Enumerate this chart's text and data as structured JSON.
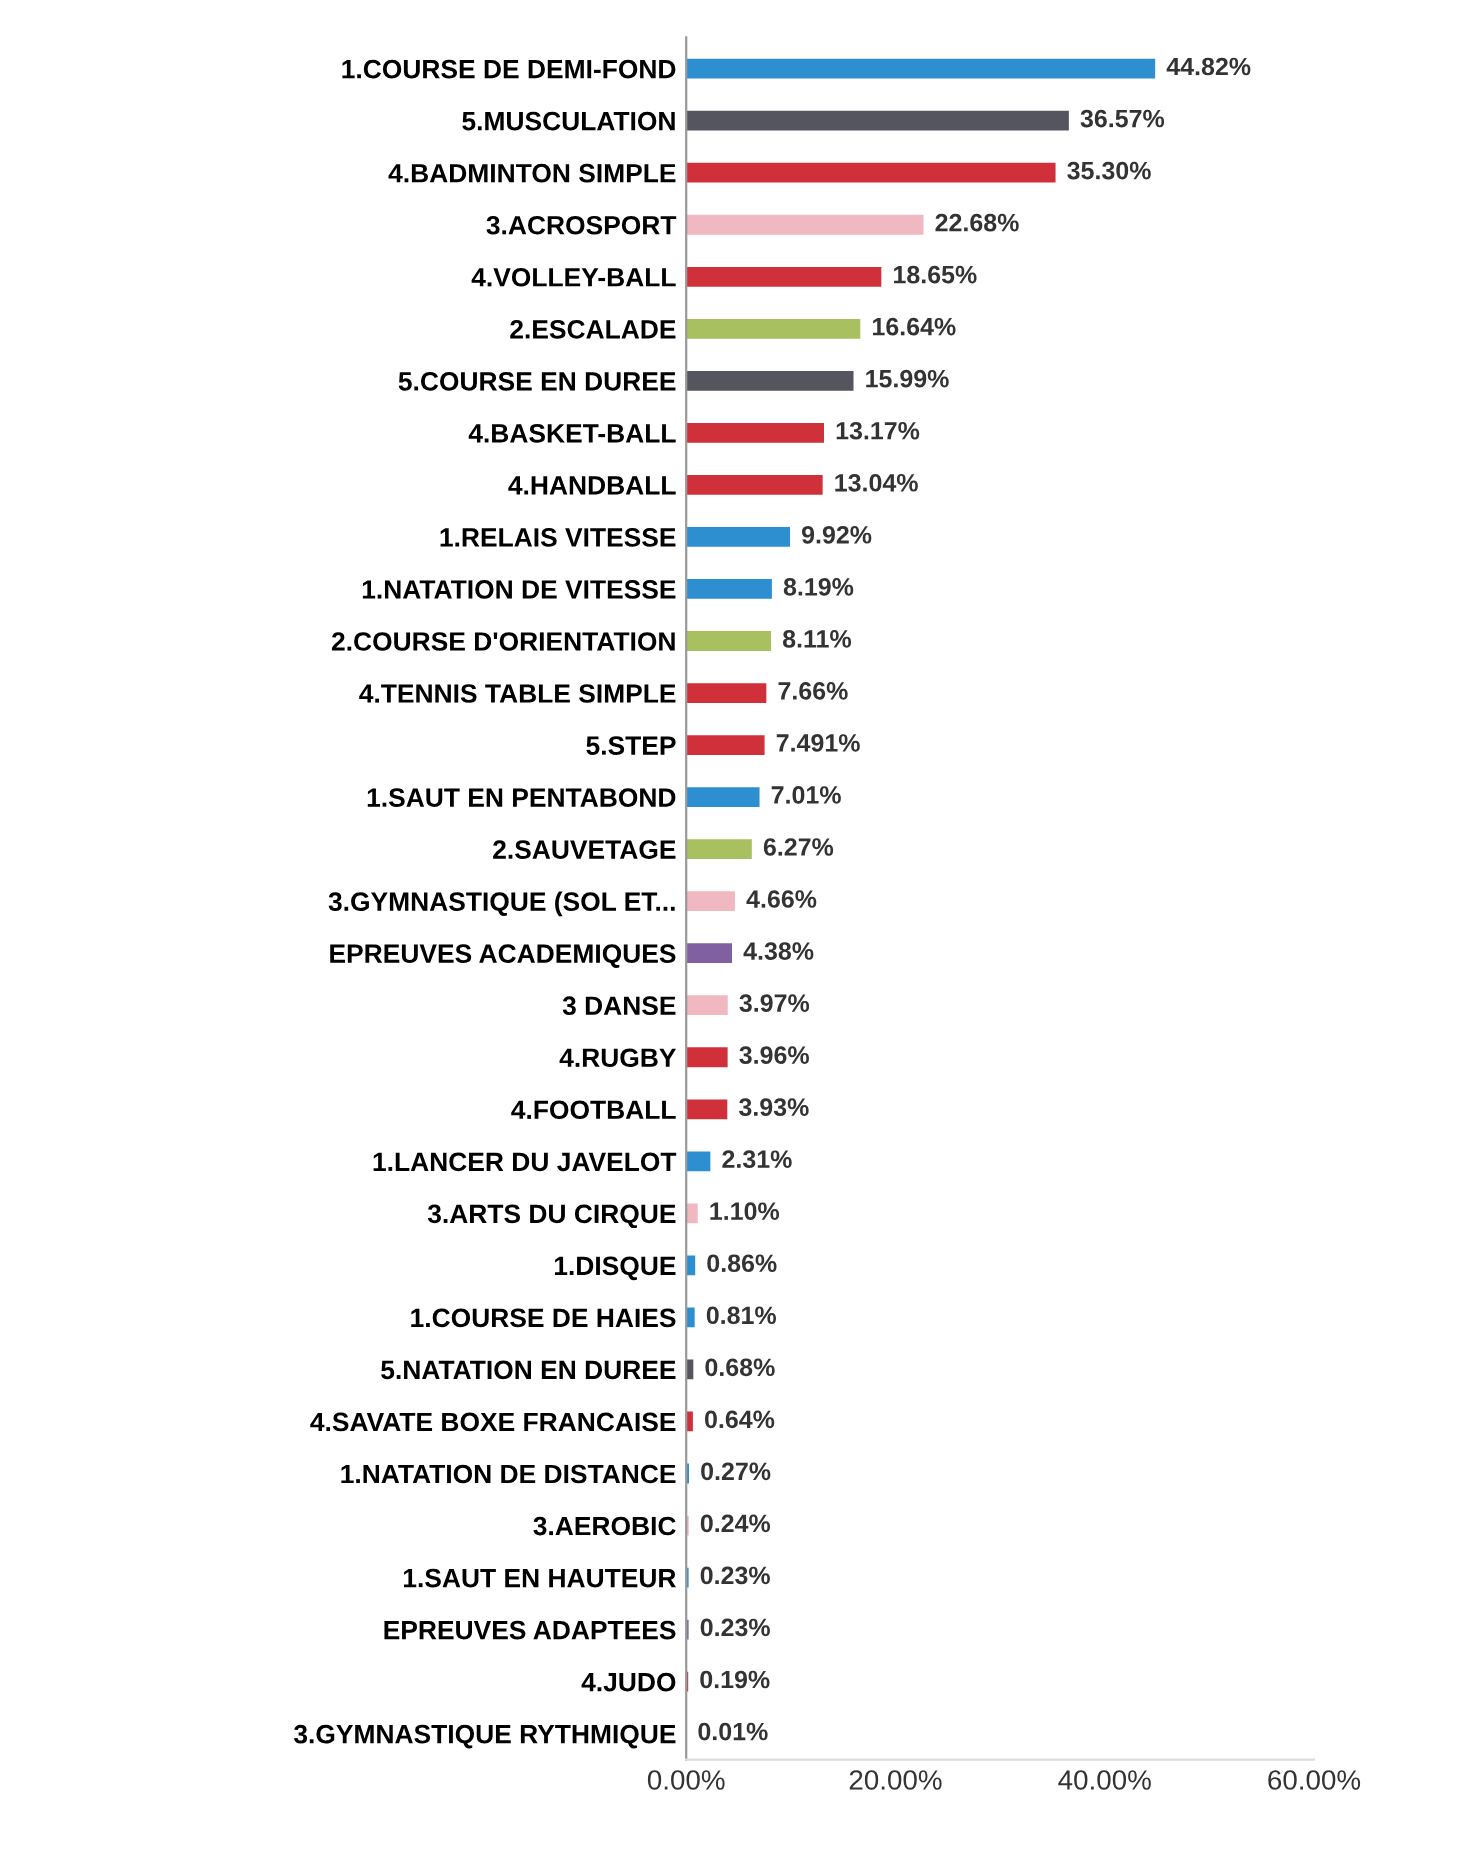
{
  "chart_data": {
    "type": "bar",
    "orientation": "horizontal",
    "categories": [
      "1.COURSE DE DEMI-FOND",
      "5.MUSCULATION",
      "4.BADMINTON SIMPLE",
      "3.ACROSPORT",
      "4.VOLLEY-BALL",
      "2.ESCALADE",
      "5.COURSE EN DUREE",
      "4.BASKET-BALL",
      "4.HANDBALL",
      "1.RELAIS VITESSE",
      "1.NATATION DE VITESSE",
      "2.COURSE D'ORIENTATION",
      "4.TENNIS TABLE SIMPLE",
      "5.STEP",
      "1.SAUT EN PENTABOND",
      "2.SAUVETAGE",
      "3.GYMNASTIQUE (SOL ET...",
      "EPREUVES ACADEMIQUES",
      "3 DANSE",
      "4.RUGBY",
      "4.FOOTBALL",
      "1.LANCER DU JAVELOT",
      "3.ARTS DU CIRQUE",
      "1.DISQUE",
      "1.COURSE DE HAIES",
      "5.NATATION EN DUREE",
      "4.SAVATE BOXE FRANCAISE",
      "1.NATATION DE DISTANCE",
      "3.AEROBIC",
      "1.SAUT EN HAUTEUR",
      "EPREUVES ADAPTEES",
      "4.JUDO",
      "3.GYMNASTIQUE RYTHMIQUE"
    ],
    "values": [
      44.82,
      36.57,
      35.3,
      22.68,
      18.65,
      16.64,
      15.99,
      13.17,
      13.04,
      9.92,
      8.19,
      8.11,
      7.66,
      7.491,
      7.01,
      6.27,
      4.66,
      4.38,
      3.97,
      3.96,
      3.93,
      2.31,
      1.1,
      0.86,
      0.81,
      0.68,
      0.64,
      0.27,
      0.24,
      0.23,
      0.23,
      0.19,
      0.01
    ],
    "value_labels": [
      "44.82%",
      "36.57%",
      "35.30%",
      "22.68%",
      "18.65%",
      "16.64%",
      "15.99%",
      "13.17%",
      "13.04%",
      "9.92%",
      "8.19%",
      "8.11%",
      "7.66%",
      "7.491%",
      "7.01%",
      "6.27%",
      "4.66%",
      "4.38%",
      "3.97%",
      "3.96%",
      "3.93%",
      "2.31%",
      "1.10%",
      "0.86%",
      "0.81%",
      "0.68%",
      "0.64%",
      "0.27%",
      "0.24%",
      "0.23%",
      "0.23%",
      "0.19%",
      "0.01%"
    ],
    "colors": [
      "#2e8fd0",
      "#55555f",
      "#d0303a",
      "#f0b8c0",
      "#d0303a",
      "#a8c060",
      "#55555f",
      "#d0303a",
      "#d0303a",
      "#2e8fd0",
      "#2e8fd0",
      "#a8c060",
      "#d0303a",
      "#d0303a",
      "#2e8fd0",
      "#a8c060",
      "#f0b8c0",
      "#8060a0",
      "#f0b8c0",
      "#d0303a",
      "#d0303a",
      "#2e8fd0",
      "#f0b8c0",
      "#2e8fd0",
      "#2e8fd0",
      "#55555f",
      "#d0303a",
      "#2e8fd0",
      "#f0b8c0",
      "#2e8fd0",
      "#8060a0",
      "#d0303a",
      "#f0b8c0"
    ],
    "xlim": [
      0,
      60
    ],
    "xticks": [
      {
        "value": 0,
        "label": "0.00%"
      },
      {
        "value": 20,
        "label": "20.00%"
      },
      {
        "value": 40,
        "label": "40.00%"
      },
      {
        "value": 60,
        "label": "60.00%"
      }
    ]
  }
}
